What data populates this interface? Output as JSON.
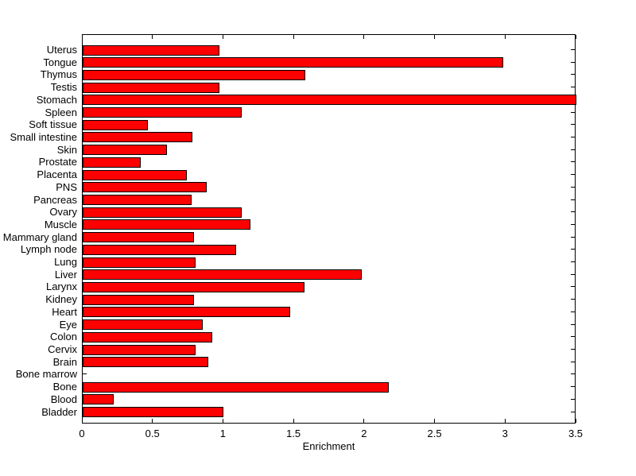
{
  "figure": {
    "background": "#ffffff",
    "text_color": "#000000"
  },
  "chart_data": {
    "type": "bar",
    "orientation": "horizontal",
    "title": "",
    "xlabel": "Enrichment",
    "ylabel": "",
    "xlim": [
      0,
      3.5
    ],
    "xticks": [
      0,
      0.5,
      1,
      1.5,
      2,
      2.5,
      3,
      3.5
    ],
    "grid": false,
    "legend_position": "none",
    "bar_color": "#ff0000",
    "bar_edge_color": "#000000",
    "axis_color": "#000000",
    "categories": [
      "Uterus",
      "Tongue",
      "Thymus",
      "Testis",
      "Stomach",
      "Spleen",
      "Soft tissue",
      "Small intestine",
      "Skin",
      "Prostate",
      "Placenta",
      "PNS",
      "Pancreas",
      "Ovary",
      "Muscle",
      "Mammary gland",
      "Lymph node",
      "Lung",
      "Liver",
      "Larynx",
      "Kidney",
      "Heart",
      "Eye",
      "Colon",
      "Cervix",
      "Brain",
      "Bone marrow",
      "Bone",
      "Blood",
      "Bladder"
    ],
    "values": [
      0.97,
      2.98,
      1.58,
      0.97,
      3.5,
      1.13,
      0.46,
      0.78,
      0.6,
      0.41,
      0.74,
      0.88,
      0.77,
      1.13,
      1.19,
      0.79,
      1.09,
      0.8,
      1.98,
      1.57,
      0.79,
      1.47,
      0.85,
      0.92,
      0.8,
      0.89,
      0,
      2.17,
      0.22,
      1.0
    ]
  }
}
